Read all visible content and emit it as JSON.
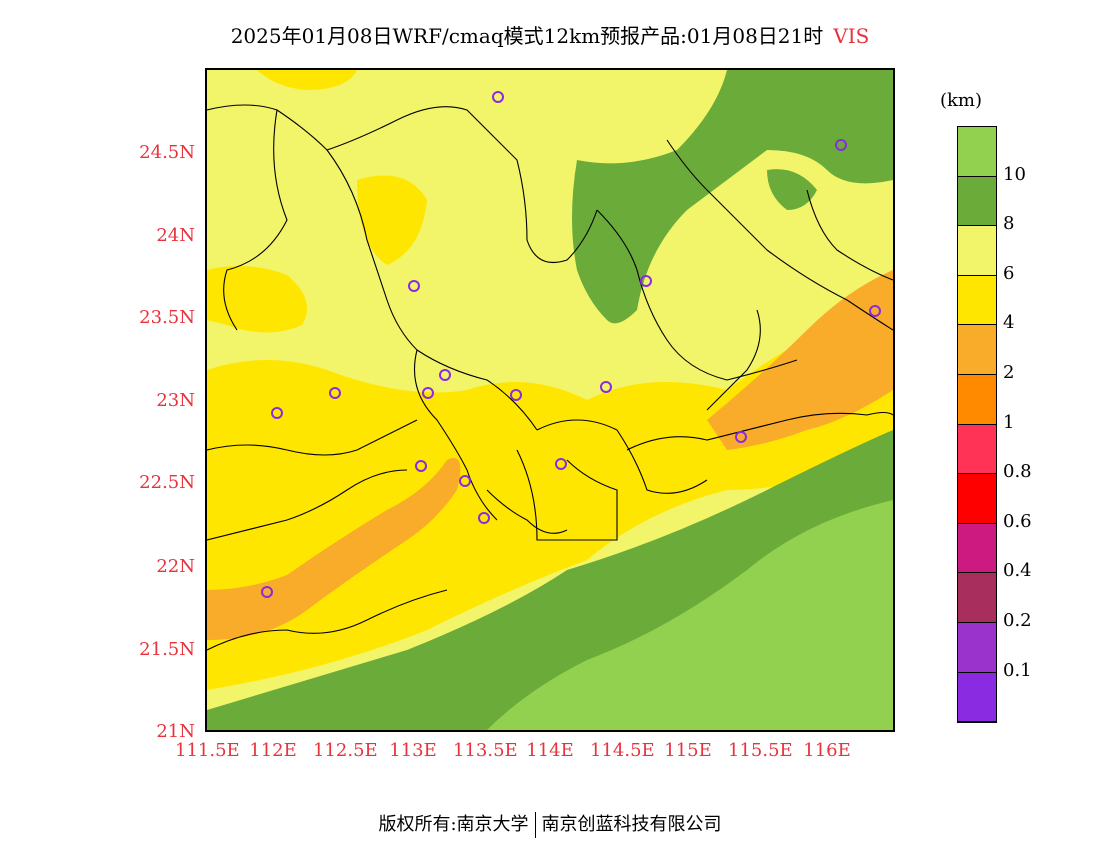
{
  "title": "2025年01月08日WRF/cmaq模式12km预报产品:01月08日21时",
  "variable": "VIS",
  "unit": "(km)",
  "lat_labels": [
    "24.5N",
    "24N",
    "23.5N",
    "23N",
    "22.5N",
    "22N",
    "21.5N",
    "21N"
  ],
  "lon_labels": [
    "111.5E",
    "112E",
    "112.5E",
    "113E",
    "113.5E",
    "114E",
    "114.5E",
    "115E",
    "115.5E",
    "116E"
  ],
  "legend": [
    {
      "label": "10",
      "color": "#92d050"
    },
    {
      "label": "8",
      "color": "#6aab3a"
    },
    {
      "label": "6",
      "color": "#f2f46a"
    },
    {
      "label": "4",
      "color": "#ffe600"
    },
    {
      "label": "2",
      "color": "#f9ab2a"
    },
    {
      "label": "1",
      "color": "#ff8a00"
    },
    {
      "label": "0.8",
      "color": "#ff3355"
    },
    {
      "label": "0.6",
      "color": "#ff0000"
    },
    {
      "label": "0.4",
      "color": "#cc1a80"
    },
    {
      "label": "0.2",
      "color": "#a82e5e"
    },
    {
      "label": "0.1",
      "color": "#9933cc"
    },
    {
      "label": "",
      "color": "#8a2be2"
    }
  ],
  "footer": {
    "left": "版权所有:南京大学",
    "right": "南京创蓝科技有限公司"
  }
}
